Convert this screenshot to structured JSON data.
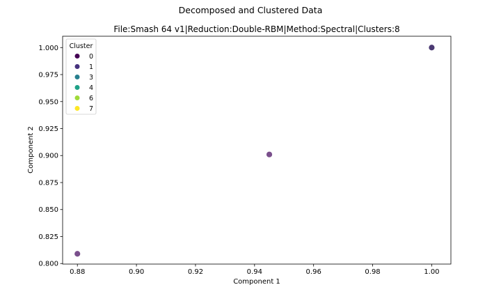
{
  "suptitle": "Decomposed and Clustered Data",
  "chart_data": {
    "type": "scatter",
    "title": "File:Smash 64 v1|Reduction:Double-RBM|Method:Spectral|Clusters:8",
    "xlabel": "Component 1",
    "ylabel": "Component 2",
    "xlim": [
      0.875,
      1.0065
    ],
    "ylim": [
      0.7995,
      1.0105
    ],
    "xticks": [
      0.88,
      0.9,
      0.92,
      0.94,
      0.96,
      0.98,
      1.0
    ],
    "xtick_labels": [
      "0.88",
      "0.90",
      "0.92",
      "0.94",
      "0.96",
      "0.98",
      "1.00"
    ],
    "yticks": [
      0.8,
      0.825,
      0.85,
      0.875,
      0.9,
      0.925,
      0.95,
      0.975,
      1.0
    ],
    "ytick_labels": [
      "0.800",
      "0.825",
      "0.850",
      "0.875",
      "0.900",
      "0.925",
      "0.950",
      "0.975",
      "1.000"
    ],
    "grid": false,
    "legend": {
      "title": "Cluster",
      "placement": "top-left",
      "entries": [
        {
          "label": "0",
          "color": "#440154"
        },
        {
          "label": "1",
          "color": "#46327e"
        },
        {
          "label": "3",
          "color": "#277f8e"
        },
        {
          "label": "4",
          "color": "#1fa187"
        },
        {
          "label": "6",
          "color": "#a0da39"
        },
        {
          "label": "7",
          "color": "#fde725"
        }
      ]
    },
    "points": [
      {
        "x": 0.88,
        "y": 0.809,
        "color": "#7a4f8c"
      },
      {
        "x": 0.945,
        "y": 0.901,
        "color": "#7a4f8c"
      },
      {
        "x": 1.0,
        "y": 1.0,
        "color": "#4b3a73"
      }
    ]
  }
}
